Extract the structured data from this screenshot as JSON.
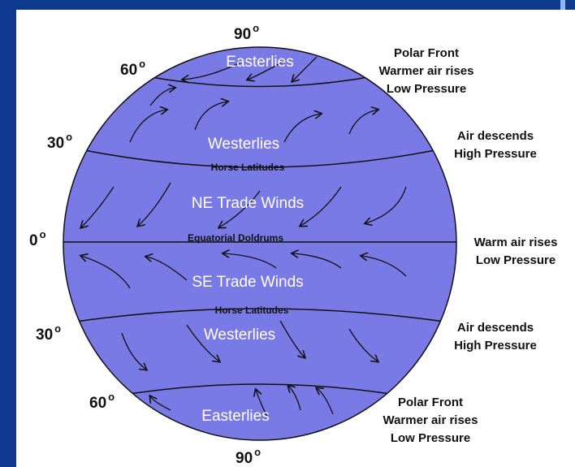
{
  "degree_mark": "o",
  "latitudes": [
    "90",
    "60",
    "30",
    "0",
    "30",
    "60",
    "90"
  ],
  "zones": [
    "Easterlies",
    "Westerlies",
    "Horse Latitudes",
    "NE Trade Winds",
    "Equatorial Doldrums",
    "SE Trade Winds",
    "Horse Latitudes",
    "Westerlies",
    "Easterlies"
  ],
  "notes": [
    [
      "Polar Front",
      "Warmer air rises",
      "Low Pressure"
    ],
    [
      "Air descends",
      "High Pressure"
    ],
    [
      "Warm air rises",
      "Low Pressure"
    ],
    [
      "Air descends",
      "High Pressure"
    ],
    [
      "Polar Front",
      "Warmer air rises",
      "Low Pressure"
    ]
  ]
}
